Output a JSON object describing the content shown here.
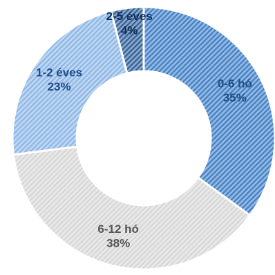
{
  "chart_data": {
    "type": "pie",
    "style": "donut",
    "hatched": true,
    "slices": [
      {
        "label": "0-6 hó",
        "value": 35,
        "value_label": "35%",
        "color": "#3f7fc6",
        "label_color": "#1f4e8a"
      },
      {
        "label": "6-12 hó",
        "value": 38,
        "value_label": "38%",
        "color": "#d6d6d6",
        "label_color": "#555555"
      },
      {
        "label": "1-2 éves",
        "value": 23,
        "value_label": "23%",
        "color": "#8cb6e6",
        "label_color": "#1f4e8a"
      },
      {
        "label": "2-5 éves",
        "value": 4,
        "value_label": "4%",
        "color": "#2f5f99",
        "label_color": "#0f2f5a"
      }
    ]
  }
}
